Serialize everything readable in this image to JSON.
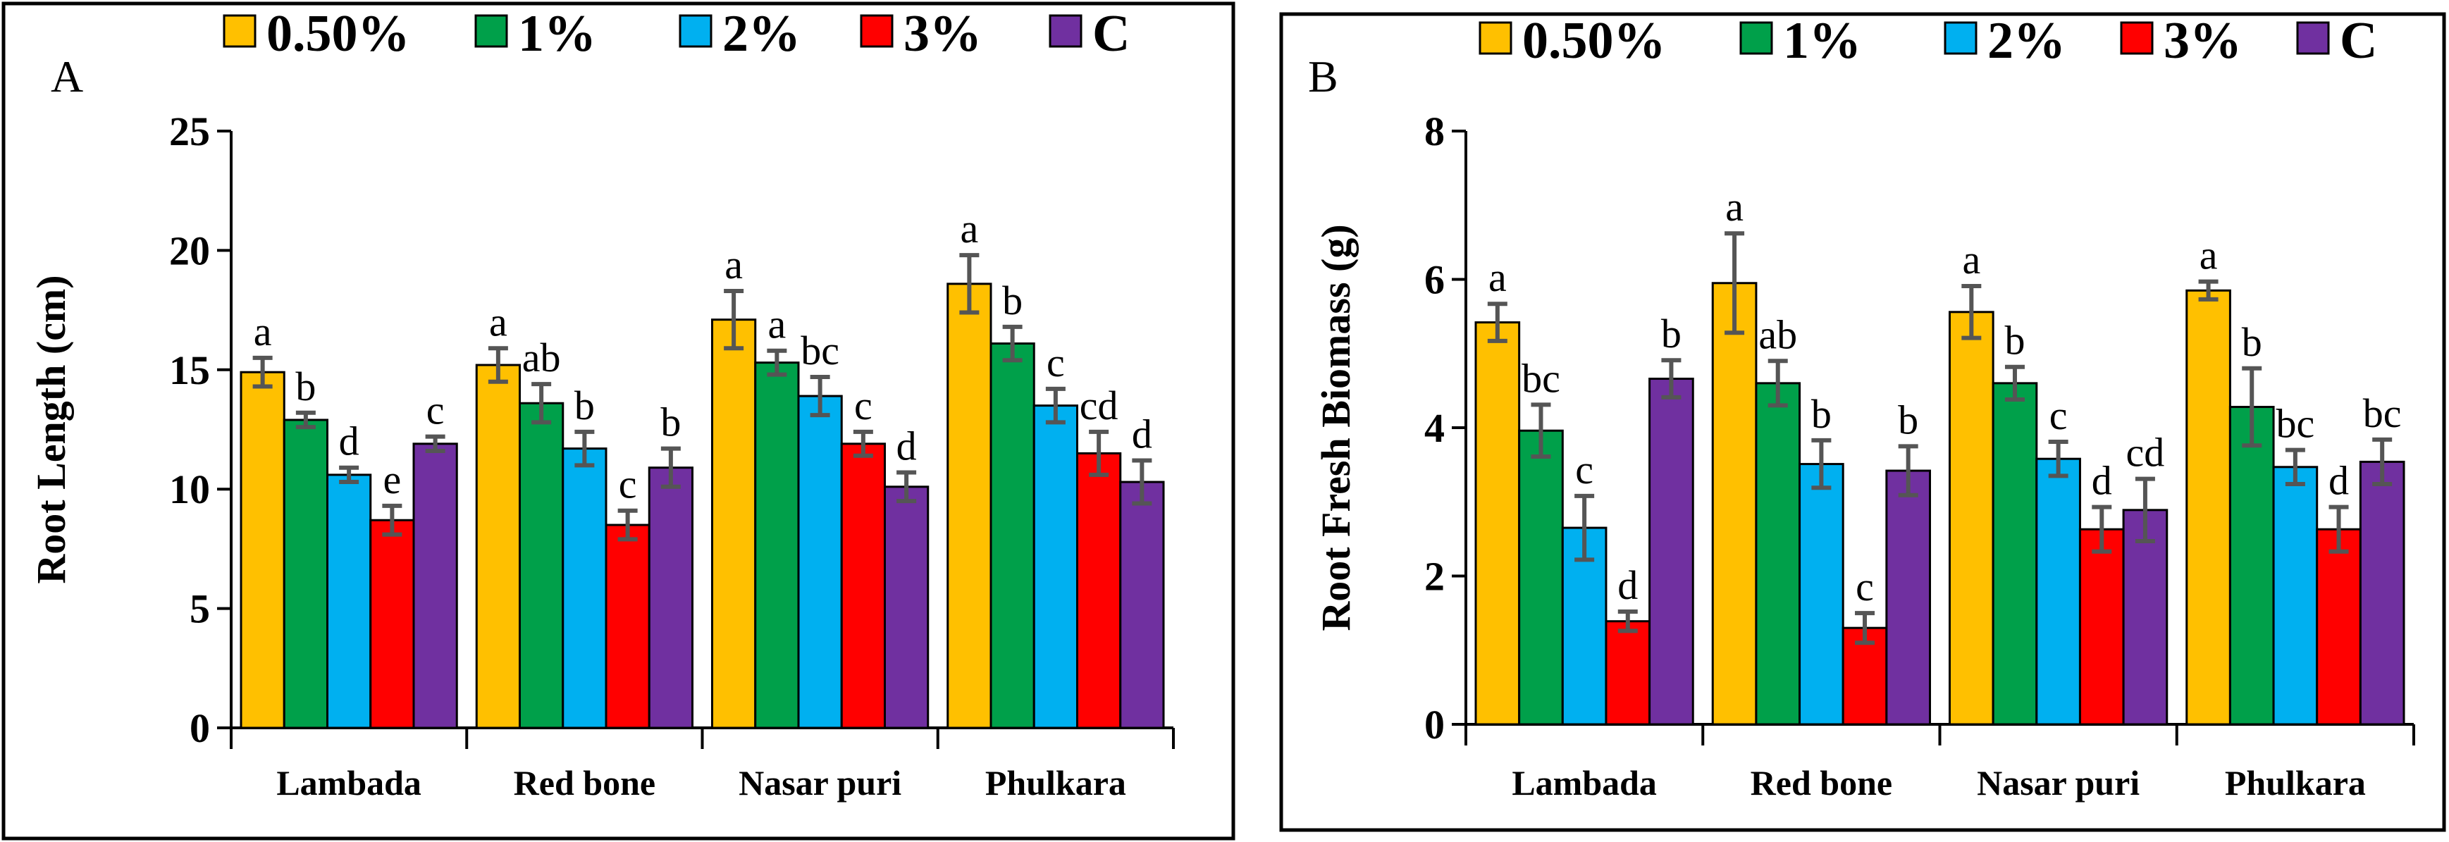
{
  "figure": {
    "colors": {
      "0.50%": "#FFC000",
      "1%": "#00A04A",
      "2%": "#00B0F0",
      "3%": "#FF0000",
      "C": "#7030A0"
    }
  },
  "chart_data": [
    {
      "id": "A",
      "type": "bar",
      "panel_label": "A",
      "title": "",
      "xlabel": "",
      "ylabel": "Root Length (cm)",
      "ylim": [
        0,
        25
      ],
      "yticks": [
        "0",
        "5",
        "10",
        "15",
        "20",
        "25"
      ],
      "categories": [
        "Lambada",
        "Red bone",
        "Nasar puri",
        "Phulkara"
      ],
      "legend": [
        "0.50%",
        "1%",
        "2%",
        "3%",
        "C"
      ],
      "legend_position": "top",
      "series": [
        {
          "name": "0.50%",
          "values": [
            14.9,
            15.2,
            17.1,
            18.6
          ],
          "errors": [
            0.6,
            0.7,
            1.2,
            1.2
          ],
          "labels": [
            "a",
            "a",
            "a",
            "a"
          ]
        },
        {
          "name": "1%",
          "values": [
            12.9,
            13.6,
            15.3,
            16.1
          ],
          "errors": [
            0.3,
            0.8,
            0.5,
            0.7
          ],
          "labels": [
            "b",
            "ab",
            "a",
            "b"
          ]
        },
        {
          "name": "2%",
          "values": [
            10.6,
            11.7,
            13.9,
            13.5
          ],
          "errors": [
            0.3,
            0.7,
            0.8,
            0.7
          ],
          "labels": [
            "d",
            "b",
            "bc",
            "c"
          ]
        },
        {
          "name": "3%",
          "values": [
            8.7,
            8.5,
            11.9,
            11.5
          ],
          "errors": [
            0.6,
            0.6,
            0.5,
            0.9
          ],
          "labels": [
            "e",
            "c",
            "c",
            "cd"
          ]
        },
        {
          "name": "C",
          "values": [
            11.9,
            10.9,
            10.1,
            10.3
          ],
          "errors": [
            0.3,
            0.8,
            0.6,
            0.9
          ],
          "labels": [
            "c",
            "b",
            "d",
            "d"
          ]
        }
      ]
    },
    {
      "id": "B",
      "type": "bar",
      "panel_label": "B",
      "title": "",
      "xlabel": "",
      "ylabel": "Root Fresh Biomass (g)",
      "ylim": [
        0,
        8
      ],
      "yticks": [
        "0",
        "2",
        "4",
        "6",
        "8"
      ],
      "categories": [
        "Lambada",
        "Red bone",
        "Nasar puri",
        "Phulkara"
      ],
      "legend": [
        "0.50%",
        "1%",
        "2%",
        "3%",
        "C"
      ],
      "legend_position": "top",
      "series": [
        {
          "name": "0.50%",
          "values": [
            5.42,
            5.95,
            5.56,
            5.85
          ],
          "errors": [
            0.25,
            0.67,
            0.35,
            0.12
          ],
          "labels": [
            "a",
            "a",
            "a",
            "a"
          ]
        },
        {
          "name": "1%",
          "values": [
            3.96,
            4.6,
            4.6,
            4.28
          ],
          "errors": [
            0.35,
            0.3,
            0.22,
            0.52
          ],
          "labels": [
            "bc",
            "ab",
            "b",
            "b"
          ]
        },
        {
          "name": "2%",
          "values": [
            2.65,
            3.51,
            3.58,
            3.47
          ],
          "errors": [
            0.43,
            0.32,
            0.23,
            0.23
          ],
          "labels": [
            "c",
            "b",
            "c",
            "bc"
          ]
        },
        {
          "name": "3%",
          "values": [
            1.39,
            1.3,
            2.63,
            2.63
          ],
          "errors": [
            0.13,
            0.2,
            0.3,
            0.3
          ],
          "labels": [
            "d",
            "c",
            "d",
            "d"
          ]
        },
        {
          "name": "C",
          "values": [
            4.66,
            3.42,
            2.89,
            3.54
          ],
          "errors": [
            0.25,
            0.33,
            0.42,
            0.3
          ],
          "labels": [
            "b",
            "b",
            "cd",
            "bc"
          ]
        }
      ]
    }
  ]
}
